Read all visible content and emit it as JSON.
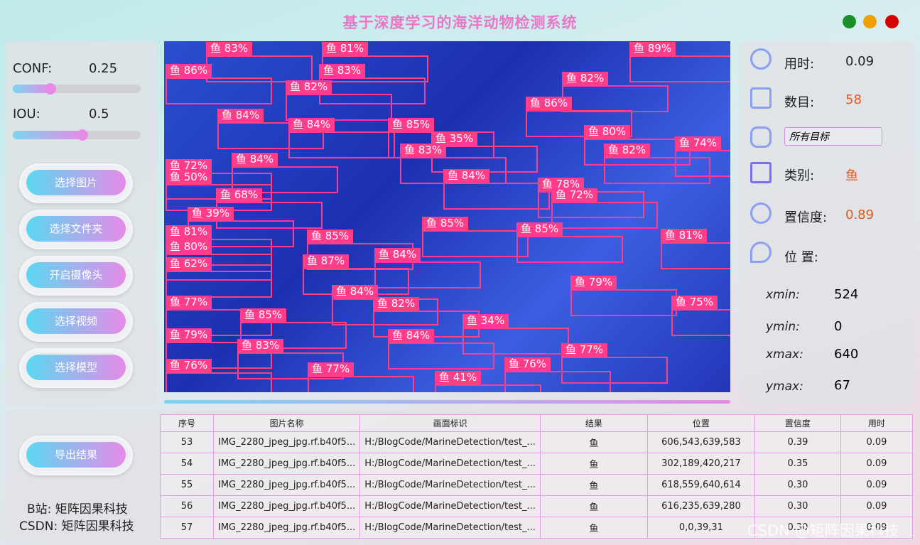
{
  "header": {
    "title": "基于深度学习的海洋动物检测系统"
  },
  "controls": {
    "conf_label": "CONF:",
    "conf": 0.25,
    "iou_label": "IOU:",
    "iou": 0.5,
    "buttons": [
      "选择图片",
      "选择文件夹",
      "开启摄像头",
      "选择视频",
      "选择模型"
    ]
  },
  "image": {
    "detections": [
      "鱼 83%",
      "鱼 81%",
      "鱼 89%",
      "鱼 86%",
      "鱼 83%",
      "鱼 82%",
      "鱼 82%",
      "鱼 86%",
      "鱼 84%",
      "鱼 84%",
      "鱼 85%",
      "鱼 80%",
      "鱼 35%",
      "鱼 83%",
      "鱼 82%",
      "鱼 74%",
      "鱼 84%",
      "鱼 72%",
      "鱼 50%",
      "鱼 84%",
      "鱼 78%",
      "鱼 72%",
      "鱼 68%",
      "鱼 39%",
      "鱼 85%",
      "鱼 85%",
      "鱼 81%",
      "鱼 85%",
      "鱼 81%",
      "鱼 80%",
      "鱼 84%",
      "鱼 87%",
      "鱼 62%",
      "鱼 79%",
      "鱼 84%",
      "鱼 77%",
      "鱼 75%",
      "鱼 82%",
      "鱼 85%",
      "鱼 34%",
      "鱼 79%",
      "鱼 84%",
      "鱼 83%",
      "鱼 77%",
      "鱼 76%",
      "鱼 76%",
      "鱼 77%",
      "鱼 41%"
    ]
  },
  "info": {
    "time_label": "用时:",
    "time": 0.09,
    "count_label": "数目:",
    "count": 58,
    "target_select": "所有目标",
    "class_label": "类别:",
    "class": "鱼",
    "conf_label": "置信度:",
    "conf": 0.89,
    "pos_label": "位 置:",
    "xmin_label": "xmin:",
    "xmin": 524,
    "ymin_label": "ymin:",
    "ymin": 0,
    "xmax_label": "xmax:",
    "xmax": 640,
    "ymax_label": "ymax:",
    "ymax": 67
  },
  "footer": {
    "export": "导出结果",
    "bilibili": "B站: 矩阵因果科技",
    "csdn": "CSDN: 矩阵因果科技",
    "watermark": "CSDN @矩阵因果科技"
  },
  "table": {
    "headers": [
      "序号",
      "图片名称",
      "画面标识",
      "结果",
      "位置",
      "置信度",
      "用时"
    ],
    "rows": [
      [
        "53",
        "IMG_2280_jpeg_jpg.rf.b40f5...",
        "H:/BlogCode/MarineDetection/test_...",
        "鱼",
        "606,543,639,583",
        "0.39",
        "0.09"
      ],
      [
        "54",
        "IMG_2280_jpeg_jpg.rf.b40f5...",
        "H:/BlogCode/MarineDetection/test_...",
        "鱼",
        "302,189,420,217",
        "0.35",
        "0.09"
      ],
      [
        "55",
        "IMG_2280_jpeg_jpg.rf.b40f5...",
        "H:/BlogCode/MarineDetection/test_...",
        "鱼",
        "618,559,640,614",
        "0.30",
        "0.09"
      ],
      [
        "56",
        "IMG_2280_jpeg_jpg.rf.b40f5...",
        "H:/BlogCode/MarineDetection/test_...",
        "鱼",
        "616,235,639,280",
        "0.30",
        "0.09"
      ],
      [
        "57",
        "IMG_2280_jpeg_jpg.rf.b40f5...",
        "H:/BlogCode/MarineDetection/test_...",
        "鱼",
        "0,0,39,31",
        "0.30",
        "0.09"
      ]
    ]
  }
}
